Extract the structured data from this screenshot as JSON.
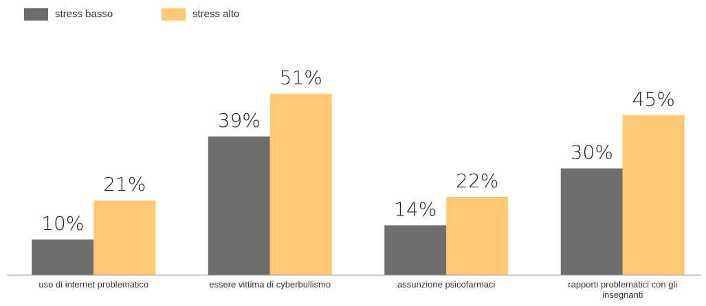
{
  "chart_data": {
    "type": "bar",
    "categories": [
      "uso di internet problematico",
      "essere vittima di cyberbullismo",
      "assunzione psicofarmaci",
      "rapporti problematici con gli insegnanti"
    ],
    "series": [
      {
        "name": "stress basso",
        "color": "#6e6e6e",
        "values": [
          10,
          39,
          14,
          30
        ],
        "value_labels": [
          "10%",
          "39%",
          "14%",
          "30%"
        ]
      },
      {
        "name": "stress alto",
        "color": "#fdc977",
        "values": [
          21,
          51,
          22,
          45
        ],
        "value_labels": [
          "21%",
          "51%",
          "22%",
          "45%"
        ]
      }
    ],
    "ylim": [
      0,
      60
    ],
    "grid": false,
    "legend": "top-left"
  }
}
